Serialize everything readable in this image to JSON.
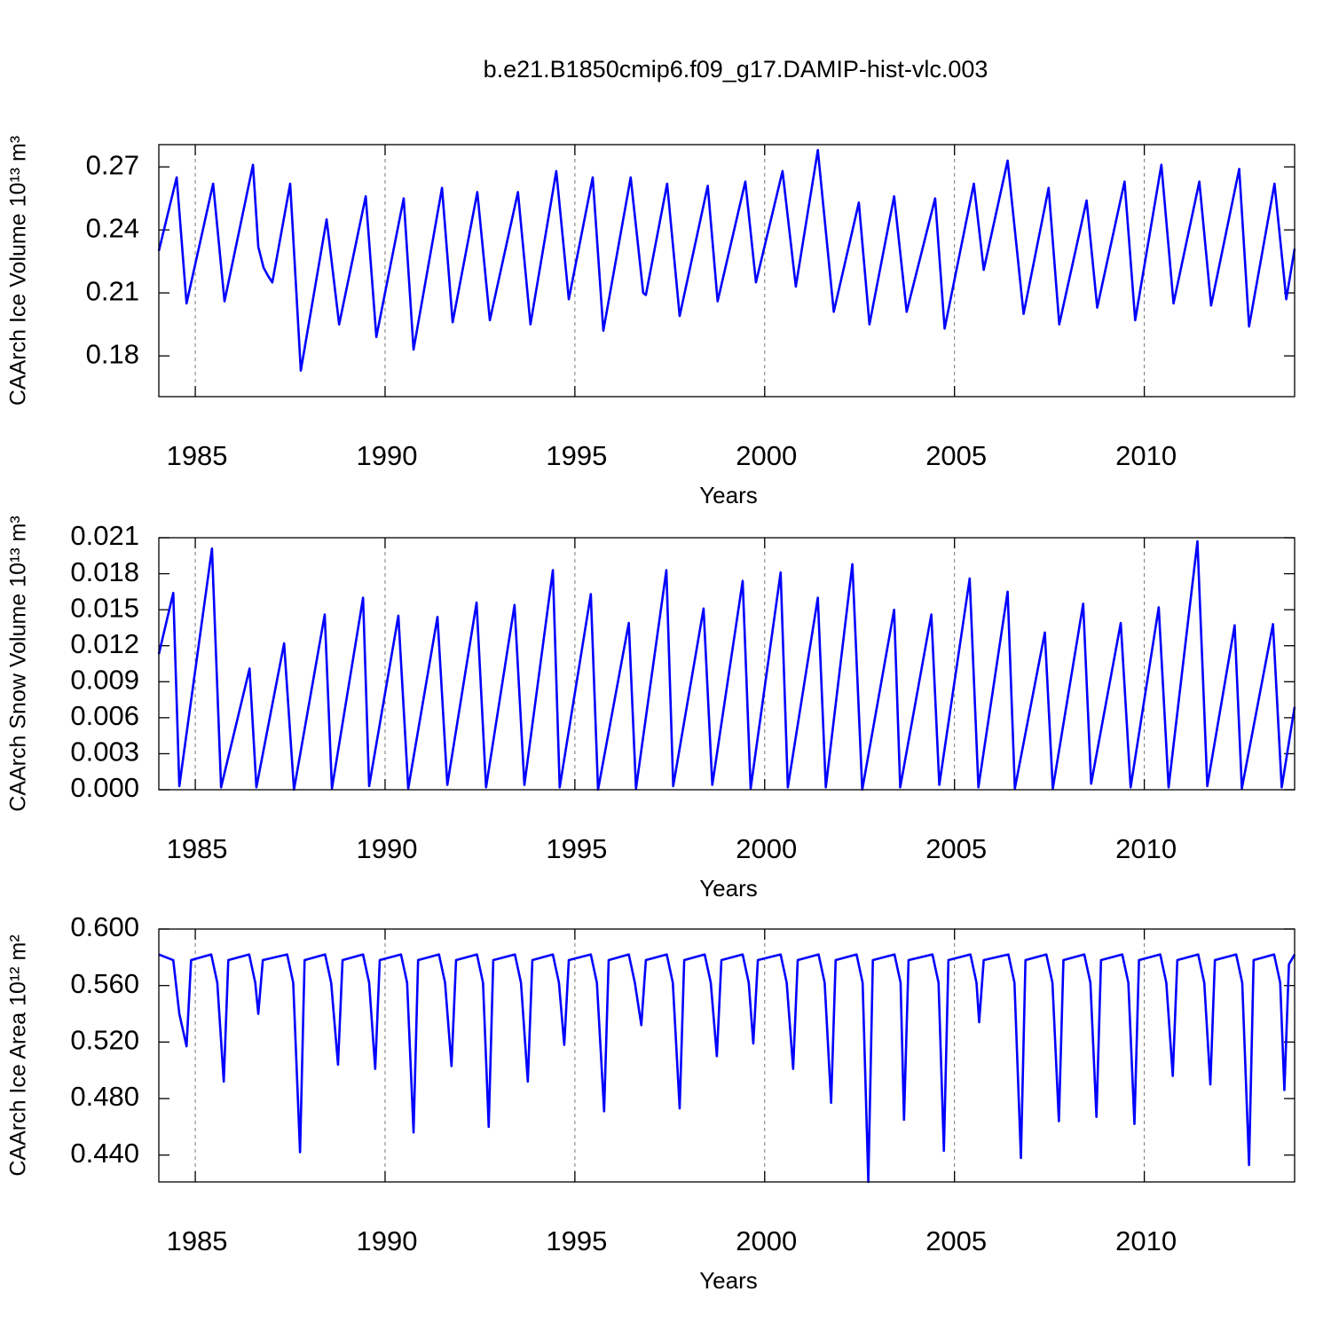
{
  "chart_data": [
    {
      "type": "line",
      "title": "b.e21.B1850cmip6.f09_g17.DAMIP-hist-vlc.003",
      "y_label": "CAArch Ice Volume 10¹³ m³",
      "x_label": "Years",
      "color": "#0000ff",
      "x_grid": true,
      "xlim": [
        1984.04,
        2013.96
      ],
      "xticks": [
        1985,
        1990,
        1995,
        2000,
        2005,
        2010
      ],
      "ylim": [
        0.1606,
        0.2806
      ],
      "yticks": [
        0.18,
        0.21,
        0.24,
        0.27
      ],
      "x": [
        1984.04,
        1984.51,
        1984.77,
        1985.47,
        1985.77,
        1986.52,
        1986.66,
        1986.8,
        1986.92,
        1987.03,
        1987.5,
        1987.78,
        1988.46,
        1988.79,
        1989.49,
        1989.77,
        1990.49,
        1990.75,
        1991.5,
        1991.78,
        1992.43,
        1992.76,
        1993.5,
        1993.83,
        1994.51,
        1994.84,
        1995.47,
        1995.75,
        1996.47,
        1996.8,
        1996.87,
        1997.43,
        1997.76,
        1998.5,
        1998.76,
        1999.49,
        1999.77,
        2000.47,
        2000.82,
        2001.4,
        2001.82,
        2002.48,
        2002.76,
        2003.41,
        2003.74,
        2004.49,
        2004.74,
        2005.51,
        2005.77,
        2006.4,
        2006.82,
        2007.48,
        2007.76,
        2008.48,
        2008.76,
        2009.48,
        2009.76,
        2010.45,
        2010.77,
        2011.45,
        2011.76,
        2012.5,
        2012.76,
        2013.43,
        2013.74,
        2013.96
      ],
      "values": [
        0.23,
        0.265,
        0.205,
        0.262,
        0.206,
        0.271,
        0.232,
        0.222,
        0.218,
        0.215,
        0.262,
        0.173,
        0.245,
        0.195,
        0.256,
        0.189,
        0.255,
        0.183,
        0.26,
        0.196,
        0.258,
        0.197,
        0.258,
        0.195,
        0.268,
        0.207,
        0.265,
        0.192,
        0.265,
        0.21,
        0.209,
        0.262,
        0.199,
        0.261,
        0.206,
        0.263,
        0.215,
        0.268,
        0.213,
        0.278,
        0.201,
        0.253,
        0.195,
        0.256,
        0.201,
        0.255,
        0.193,
        0.262,
        0.221,
        0.273,
        0.2,
        0.26,
        0.195,
        0.254,
        0.203,
        0.263,
        0.197,
        0.271,
        0.205,
        0.263,
        0.204,
        0.269,
        0.194,
        0.262,
        0.207,
        0.231
      ]
    },
    {
      "type": "line",
      "y_label": "CAArch Snow Volume 10¹³ m³",
      "x_label": "Years",
      "color": "#0000ff",
      "x_grid": true,
      "xlim": [
        1984.04,
        2013.96
      ],
      "xticks": [
        1985,
        1990,
        1995,
        2000,
        2005,
        2010
      ],
      "ylim": [
        0,
        0.021
      ],
      "yticks": [
        {
          "value": 0,
          "label": "0.000"
        },
        0.003,
        0.006,
        0.009,
        0.012,
        0.015,
        0.018,
        0.021
      ],
      "x": [
        1984.04,
        1984.42,
        1984.58,
        1985.44,
        1985.68,
        1986.43,
        1986.61,
        1987.34,
        1987.6,
        1988.41,
        1988.6,
        1989.42,
        1989.58,
        1990.35,
        1990.61,
        1991.38,
        1991.64,
        1992.41,
        1992.66,
        1993.41,
        1993.67,
        1994.42,
        1994.6,
        1995.42,
        1995.61,
        1996.42,
        1996.61,
        1997.41,
        1997.59,
        1998.39,
        1998.62,
        1999.42,
        1999.63,
        2000.42,
        2000.61,
        2001.4,
        2001.61,
        2002.31,
        2002.57,
        2003.41,
        2003.57,
        2004.39,
        2004.6,
        2005.4,
        2005.63,
        2006.4,
        2006.59,
        2007.38,
        2007.59,
        2008.39,
        2008.6,
        2009.38,
        2009.64,
        2010.38,
        2010.64,
        2011.4,
        2011.66,
        2012.38,
        2012.57,
        2013.39,
        2013.62,
        2013.96
      ],
      "values": [
        0.0113,
        0.0164,
        0.0003,
        0.0201,
        0.0002,
        0.0101,
        0.0002,
        0.0122,
        0.0,
        0.0146,
        0.0001,
        0.016,
        0.0003,
        0.0145,
        0.0001,
        0.0144,
        0.0004,
        0.0156,
        0.0002,
        0.0154,
        0.0004,
        0.0183,
        0.0002,
        0.0163,
        0.0,
        0.0139,
        0.0001,
        0.0183,
        0.0003,
        0.0151,
        0.0004,
        0.0174,
        0.0001,
        0.0181,
        0.0002,
        0.016,
        0.0002,
        0.0188,
        0.0,
        0.015,
        0.0002,
        0.0146,
        0.0004,
        0.0176,
        0.0002,
        0.0165,
        0.0001,
        0.0131,
        0.0001,
        0.0155,
        0.0005,
        0.0139,
        0.0002,
        0.0152,
        0.0002,
        0.0207,
        0.0003,
        0.0137,
        0.0001,
        0.0138,
        0.0002,
        0.0069
      ]
    },
    {
      "type": "line",
      "y_label": "CAArch Ice Area 10¹² m²",
      "x_label": "Years",
      "color": "#0000ff",
      "x_grid": true,
      "xlim": [
        1984.04,
        2013.96
      ],
      "xticks": [
        1985,
        1990,
        1995,
        2000,
        2005,
        2010
      ],
      "ylim": [
        0.421,
        0.6
      ],
      "yticks": [
        {
          "value": 0.44,
          "label": "0.440"
        },
        {
          "value": 0.48,
          "label": "0.480"
        },
        {
          "value": 0.52,
          "label": "0.520"
        },
        {
          "value": 0.56,
          "label": "0.560"
        },
        {
          "value": 0.6,
          "label": "0.600"
        }
      ],
      "x": [
        1984.04,
        1984.42,
        1984.58,
        1984.77,
        1984.89,
        1985.42,
        1985.58,
        1985.75,
        1985.87,
        1986.42,
        1986.58,
        1986.66,
        1986.78,
        1987.42,
        1987.58,
        1987.76,
        1987.88,
        1988.42,
        1988.58,
        1988.76,
        1988.88,
        1989.42,
        1989.58,
        1989.74,
        1989.86,
        1990.42,
        1990.58,
        1990.75,
        1990.87,
        1991.42,
        1991.58,
        1991.75,
        1991.87,
        1992.42,
        1992.58,
        1992.73,
        1992.85,
        1993.42,
        1993.58,
        1993.76,
        1993.88,
        1994.42,
        1994.58,
        1994.72,
        1994.84,
        1995.42,
        1995.58,
        1995.77,
        1995.89,
        1996.42,
        1996.58,
        1996.75,
        1996.87,
        1997.42,
        1997.58,
        1997.76,
        1997.88,
        1998.42,
        1998.58,
        1998.74,
        1998.86,
        1999.42,
        1999.58,
        1999.7,
        1999.82,
        2000.42,
        2000.58,
        2000.75,
        2000.87,
        2001.42,
        2001.58,
        2001.75,
        2001.87,
        2002.42,
        2002.58,
        2002.73,
        2002.85,
        2003.42,
        2003.58,
        2003.67,
        2003.79,
        2004.42,
        2004.58,
        2004.72,
        2004.84,
        2005.42,
        2005.58,
        2005.65,
        2005.77,
        2006.42,
        2006.58,
        2006.75,
        2006.87,
        2007.42,
        2007.58,
        2007.75,
        2007.87,
        2008.42,
        2008.58,
        2008.74,
        2008.86,
        2009.42,
        2009.58,
        2009.74,
        2009.86,
        2010.42,
        2010.58,
        2010.75,
        2010.87,
        2011.42,
        2011.58,
        2011.74,
        2011.86,
        2012.42,
        2012.58,
        2012.76,
        2012.88,
        2013.42,
        2013.58,
        2013.69,
        2013.81,
        2013.96
      ],
      "values": [
        0.582,
        0.578,
        0.54,
        0.517,
        0.578,
        0.582,
        0.562,
        0.492,
        0.578,
        0.582,
        0.562,
        0.54,
        0.578,
        0.582,
        0.562,
        0.442,
        0.578,
        0.582,
        0.562,
        0.504,
        0.578,
        0.582,
        0.562,
        0.501,
        0.578,
        0.582,
        0.562,
        0.456,
        0.578,
        0.582,
        0.562,
        0.503,
        0.578,
        0.582,
        0.562,
        0.46,
        0.578,
        0.582,
        0.562,
        0.492,
        0.578,
        0.582,
        0.562,
        0.518,
        0.578,
        0.582,
        0.562,
        0.471,
        0.578,
        0.582,
        0.562,
        0.532,
        0.578,
        0.582,
        0.562,
        0.473,
        0.578,
        0.582,
        0.562,
        0.51,
        0.578,
        0.582,
        0.562,
        0.519,
        0.578,
        0.582,
        0.562,
        0.501,
        0.578,
        0.582,
        0.562,
        0.477,
        0.578,
        0.582,
        0.562,
        0.421,
        0.578,
        0.582,
        0.562,
        0.465,
        0.578,
        0.582,
        0.562,
        0.443,
        0.578,
        0.582,
        0.562,
        0.534,
        0.578,
        0.582,
        0.562,
        0.438,
        0.578,
        0.582,
        0.562,
        0.464,
        0.578,
        0.582,
        0.562,
        0.467,
        0.578,
        0.582,
        0.562,
        0.462,
        0.578,
        0.582,
        0.562,
        0.496,
        0.578,
        0.582,
        0.562,
        0.49,
        0.578,
        0.582,
        0.562,
        0.433,
        0.578,
        0.582,
        0.562,
        0.486,
        0.575,
        0.582
      ]
    }
  ]
}
